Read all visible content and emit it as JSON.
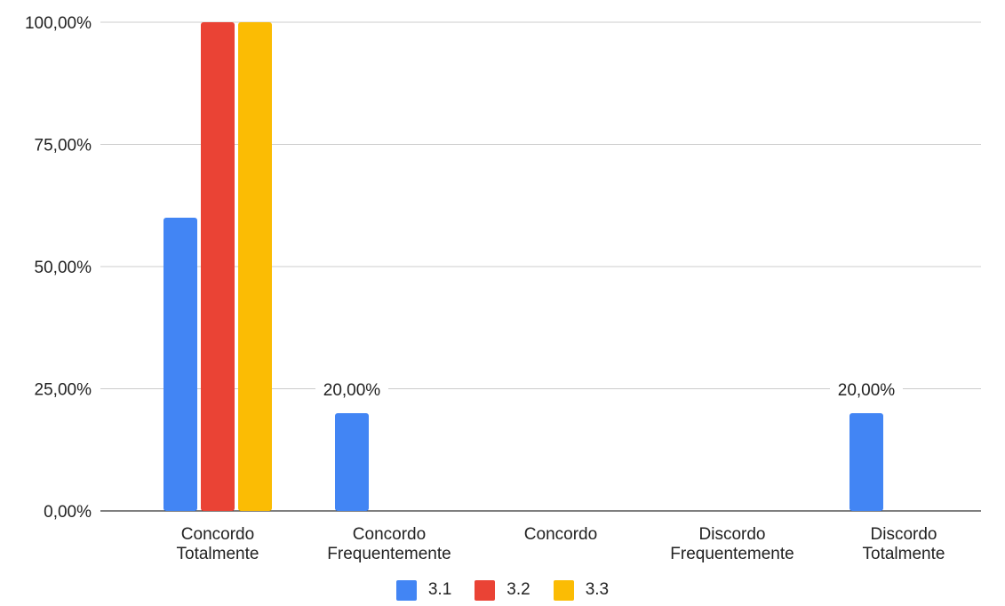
{
  "chart_data": {
    "type": "bar",
    "categories": [
      [
        "Concordo",
        "Totalmente"
      ],
      [
        "Concordo",
        "Frequentemente"
      ],
      [
        "Concordo"
      ],
      [
        "Discordo",
        "Frequentemente"
      ],
      [
        "Discordo",
        "Totalmente"
      ]
    ],
    "series": [
      {
        "name": "3.1",
        "color": "#4285F4",
        "values": [
          60,
          20,
          0,
          0,
          20
        ]
      },
      {
        "name": "3.2",
        "color": "#EA4335",
        "values": [
          100,
          0,
          0,
          0,
          0
        ]
      },
      {
        "name": "3.3",
        "color": "#FBBC04",
        "values": [
          100,
          0,
          0,
          0,
          0
        ]
      }
    ],
    "ylim": [
      0,
      100
    ],
    "yticks": [
      "0,00%",
      "25,00%",
      "50,00%",
      "75,00%",
      "100,00%"
    ],
    "data_labels": [
      {
        "category": 1,
        "series": 0,
        "text": "20,00%"
      },
      {
        "category": 4,
        "series": 0,
        "text": "20,00%"
      }
    ],
    "grid": true,
    "legend_position": "bottom"
  }
}
